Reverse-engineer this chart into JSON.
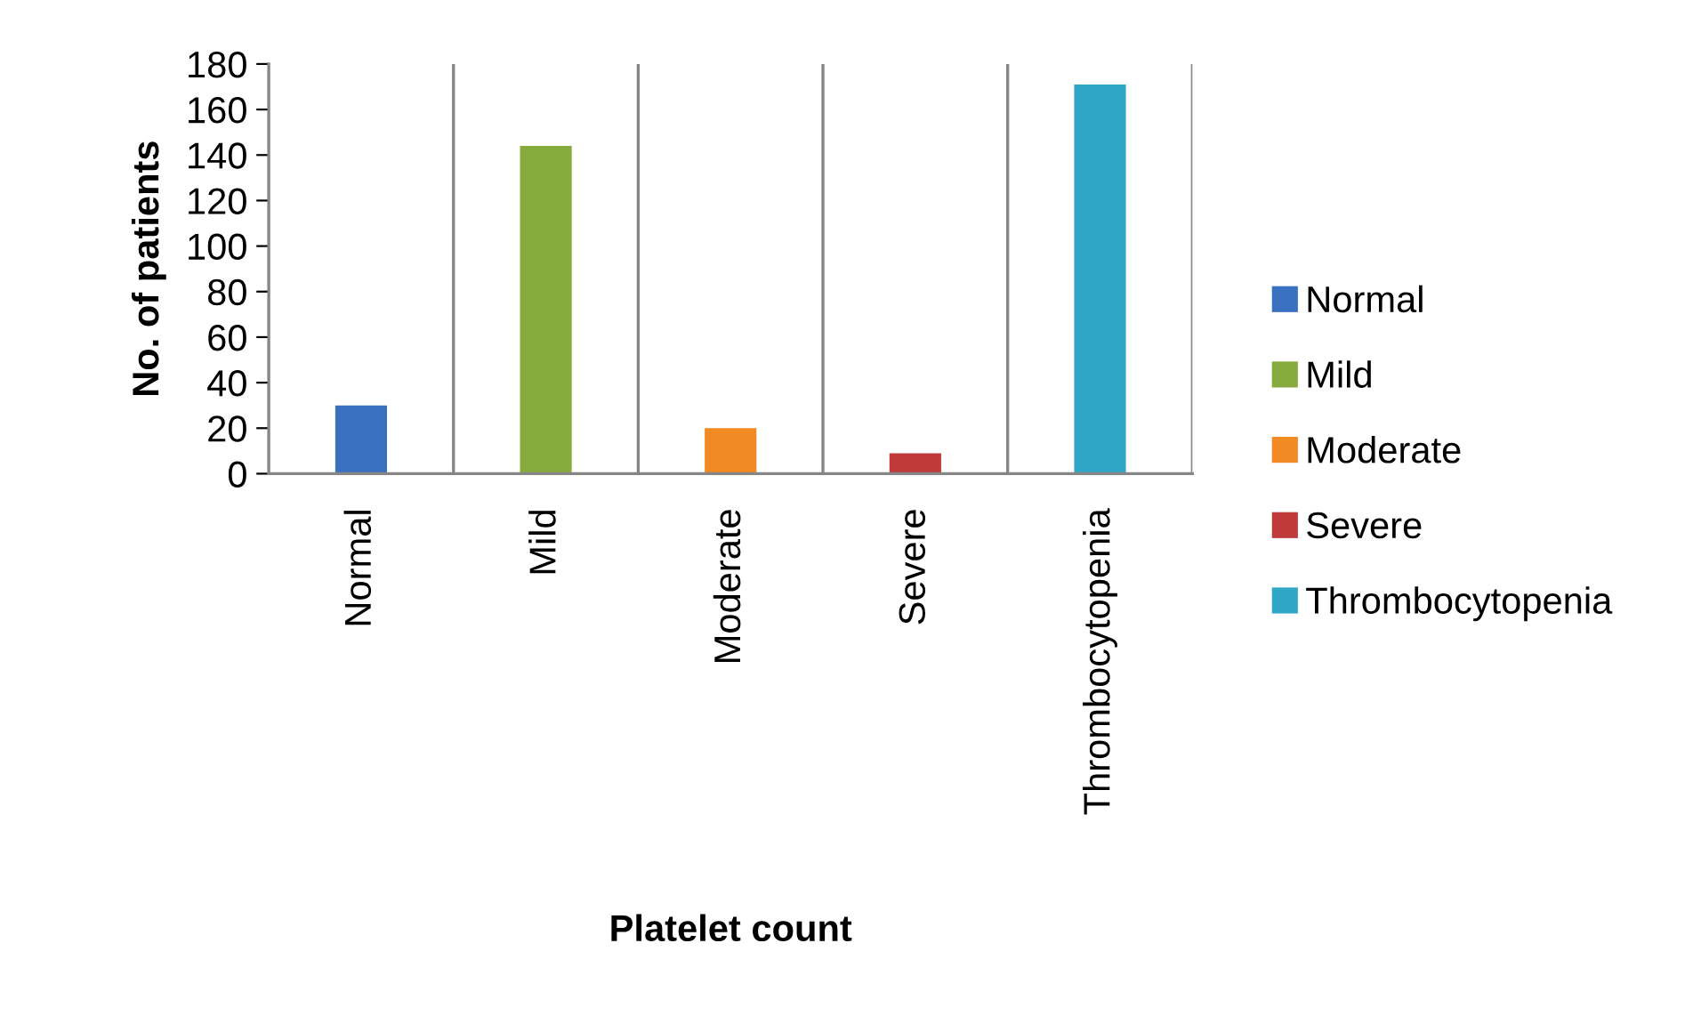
{
  "chart_data": {
    "type": "bar",
    "xlabel": "Platelet count",
    "ylabel": "No. of patients",
    "categories": [
      "Normal",
      "Mild",
      "Moderate",
      "Severe",
      "Thrombocytopenia"
    ],
    "series": [
      {
        "name": "Normal",
        "color": "#3a70c0",
        "values": [
          30,
          null,
          null,
          null,
          null
        ]
      },
      {
        "name": "Mild",
        "color": "#86ab3c",
        "values": [
          null,
          144,
          null,
          null,
          null
        ]
      },
      {
        "name": "Moderate",
        "color": "#f28a24",
        "values": [
          null,
          null,
          20,
          null,
          null
        ]
      },
      {
        "name": "Severe",
        "color": "#c0393b",
        "values": [
          null,
          null,
          null,
          9,
          null
        ]
      },
      {
        "name": "Thrombocytopenia",
        "color": "#30a6c6",
        "values": [
          null,
          null,
          null,
          null,
          171
        ]
      }
    ],
    "ylim": [
      0,
      180
    ],
    "yticks": [
      0,
      20,
      40,
      60,
      80,
      100,
      120,
      140,
      160,
      180
    ],
    "grid": "x",
    "legend": "right"
  }
}
